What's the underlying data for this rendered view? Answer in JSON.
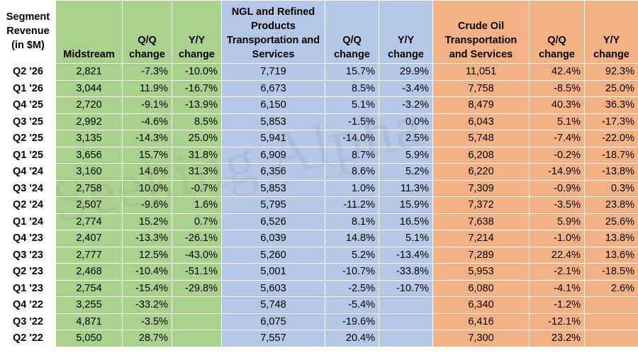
{
  "headers": {
    "row_label": "Segment Revenue (in $M)",
    "midstream": "Midstream",
    "qq1": "Q/Q change",
    "yy1": "Y/Y change",
    "ngl": "NGL and Refined Products Transportation and Services",
    "qq2": "Q/Q change",
    "yy2": "Y/Y change",
    "crude": "Crude Oil Transportation and Services",
    "qq3": "Q/Q change",
    "yy3": "Y/Y change"
  },
  "watermark": "Seeking Alpha",
  "colors": {
    "green": "#a9d18e",
    "blue": "#b4c7e7",
    "orange": "#f4b183"
  },
  "rows": [
    {
      "q": "Q2 '26",
      "mid": "2,821",
      "mqq": "-7.3%",
      "myy": "-10.0%",
      "ngl": "7,719",
      "nqq": "15.7%",
      "nyy": "29.9%",
      "cr": "11,051",
      "cqq": "42.4%",
      "cyy": "92.3%"
    },
    {
      "q": "Q1 '26",
      "mid": "3,044",
      "mqq": "11.9%",
      "myy": "-16.7%",
      "ngl": "6,673",
      "nqq": "8.5%",
      "nyy": "-3.4%",
      "cr": "7,758",
      "cqq": "-8.5%",
      "cyy": "25.0%"
    },
    {
      "q": "Q4 '25",
      "mid": "2,720",
      "mqq": "-9.1%",
      "myy": "-13.9%",
      "ngl": "6,150",
      "nqq": "5.1%",
      "nyy": "-3.2%",
      "cr": "8,479",
      "cqq": "40.3%",
      "cyy": "36.3%"
    },
    {
      "q": "Q3 '25",
      "mid": "2,992",
      "mqq": "-4.6%",
      "myy": "8.5%",
      "ngl": "5,853",
      "nqq": "-1.5%",
      "nyy": "0.0%",
      "cr": "6,043",
      "cqq": "5.1%",
      "cyy": "-17.3%"
    },
    {
      "q": "Q2 '25",
      "mid": "3,135",
      "mqq": "-14.3%",
      "myy": "25.0%",
      "ngl": "5,941",
      "nqq": "-14.0%",
      "nyy": "2.5%",
      "cr": "5,748",
      "cqq": "-7.4%",
      "cyy": "-22.0%"
    },
    {
      "q": "Q1 '25",
      "mid": "3,656",
      "mqq": "15.7%",
      "myy": "31.8%",
      "ngl": "6,909",
      "nqq": "8.7%",
      "nyy": "5.9%",
      "cr": "6,208",
      "cqq": "-0.2%",
      "cyy": "-18.7%"
    },
    {
      "q": "Q4 '24",
      "mid": "3,160",
      "mqq": "14.6%",
      "myy": "31.3%",
      "ngl": "6,356",
      "nqq": "8.6%",
      "nyy": "5.2%",
      "cr": "6,220",
      "cqq": "-14.9%",
      "cyy": "-13.8%"
    },
    {
      "q": "Q3 '24",
      "mid": "2,758",
      "mqq": "10.0%",
      "myy": "-0.7%",
      "ngl": "5,853",
      "nqq": "1.0%",
      "nyy": "11.3%",
      "cr": "7,309",
      "cqq": "-0.9%",
      "cyy": "0.3%"
    },
    {
      "q": "Q2 '24",
      "mid": "2,507",
      "mqq": "-9.6%",
      "myy": "1.6%",
      "ngl": "5,795",
      "nqq": "-11.2%",
      "nyy": "15.9%",
      "cr": "7,372",
      "cqq": "-3.5%",
      "cyy": "23.8%"
    },
    {
      "q": "Q1 '24",
      "mid": "2,774",
      "mqq": "15.2%",
      "myy": "0.7%",
      "ngl": "6,526",
      "nqq": "8.1%",
      "nyy": "16.5%",
      "cr": "7,638",
      "cqq": "5.9%",
      "cyy": "25.6%"
    },
    {
      "q": "Q4 '23",
      "mid": "2,407",
      "mqq": "-13.3%",
      "myy": "-26.1%",
      "ngl": "6,039",
      "nqq": "14.8%",
      "nyy": "5.1%",
      "cr": "7,214",
      "cqq": "-1.0%",
      "cyy": "13.8%"
    },
    {
      "q": "Q3 '23",
      "mid": "2,777",
      "mqq": "12.5%",
      "myy": "-43.0%",
      "ngl": "5,260",
      "nqq": "5.2%",
      "nyy": "-13.4%",
      "cr": "7,289",
      "cqq": "22.4%",
      "cyy": "13.6%"
    },
    {
      "q": "Q2 '23",
      "mid": "2,468",
      "mqq": "-10.4%",
      "myy": "-51.1%",
      "ngl": "5,001",
      "nqq": "-10.7%",
      "nyy": "-33.8%",
      "cr": "5,953",
      "cqq": "-2.1%",
      "cyy": "-18.5%"
    },
    {
      "q": "Q1 '23",
      "mid": "2,754",
      "mqq": "-15.4%",
      "myy": "-29.8%",
      "ngl": "5,603",
      "nqq": "-2.5%",
      "nyy": "-10.7%",
      "cr": "6,080",
      "cqq": "-4.1%",
      "cyy": "2.6%"
    },
    {
      "q": "Q4 '22",
      "mid": "3,255",
      "mqq": "-33.2%",
      "myy": "",
      "ngl": "5,748",
      "nqq": "-5.4%",
      "nyy": "",
      "cr": "6,340",
      "cqq": "-1.2%",
      "cyy": ""
    },
    {
      "q": "Q3 '22",
      "mid": "4,871",
      "mqq": "-3.5%",
      "myy": "",
      "ngl": "6,075",
      "nqq": "-19.6%",
      "nyy": "",
      "cr": "6,416",
      "cqq": "-12.1%",
      "cyy": ""
    },
    {
      "q": "Q2 '22",
      "mid": "5,050",
      "mqq": "28.7%",
      "myy": "",
      "ngl": "7,557",
      "nqq": "20.4%",
      "nyy": "",
      "cr": "7,300",
      "cqq": "23.2%",
      "cyy": ""
    }
  ]
}
